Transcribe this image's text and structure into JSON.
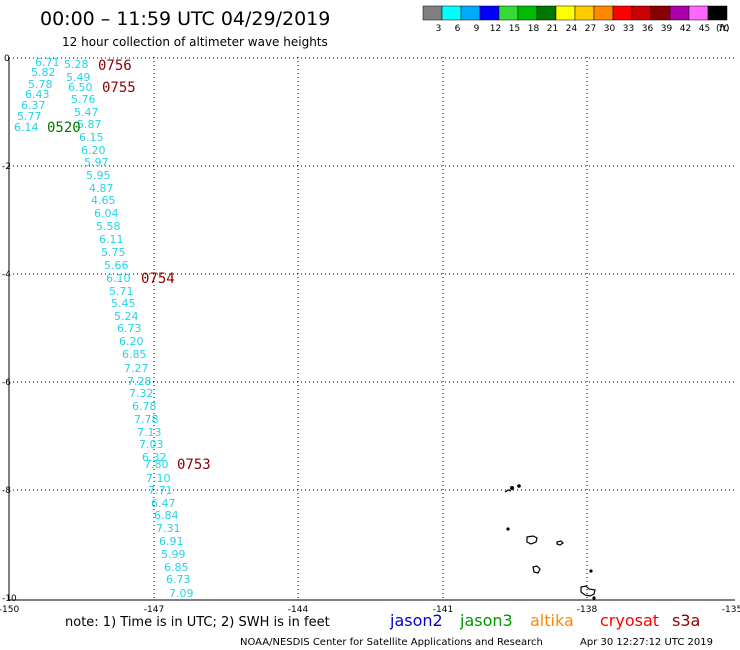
{
  "header": {
    "title": "00:00 – 11:59 UTC 04/29/2019",
    "subtitle": "12 hour collection of altimeter wave heights"
  },
  "color_scale": {
    "unit": "(ft)",
    "bins": [
      {
        "label": "3",
        "color": "#808080"
      },
      {
        "label": "6",
        "color": "#00ffff"
      },
      {
        "label": "9",
        "color": "#00aaff"
      },
      {
        "label": "12",
        "color": "#0000ff"
      },
      {
        "label": "15",
        "color": "#33dd33"
      },
      {
        "label": "18",
        "color": "#00bb00"
      },
      {
        "label": "21",
        "color": "#007700"
      },
      {
        "label": "24",
        "color": "#ffff00"
      },
      {
        "label": "27",
        "color": "#ffcc00"
      },
      {
        "label": "30",
        "color": "#ff8800"
      },
      {
        "label": "33",
        "color": "#ff0000"
      },
      {
        "label": "36",
        "color": "#cc0000"
      },
      {
        "label": "39",
        "color": "#880000"
      },
      {
        "label": "42",
        "color": "#aa00aa"
      },
      {
        "label": "45",
        "color": "#ff66ff"
      },
      {
        "label": "70",
        "color": "#000000"
      }
    ]
  },
  "axes": {
    "lon_ticks": [
      "-150",
      "-147",
      "-144",
      "-141",
      "-138",
      "-135"
    ],
    "lat_ticks": [
      "0",
      "-2",
      "-4",
      "-6",
      "-8",
      "-10"
    ]
  },
  "track_values": [
    "6.71",
    "5.82",
    "5.78",
    "6.43",
    "6.37",
    "5.77",
    "6.14",
    "5.28",
    "5.49",
    "6.50",
    "5.76",
    "5.47",
    "5.87",
    "6.15",
    "6.20",
    "5.97",
    "5.95",
    "4.87",
    "4.65",
    "6.04",
    "5.58",
    "6.11",
    "5.75",
    "5.66",
    "6.10",
    "5.71",
    "5.45",
    "5.24",
    "6.73",
    "6.20",
    "6.85",
    "7.27",
    "7.28",
    "7.32",
    "6.78",
    "7.78",
    "7.13",
    "7.03",
    "6.32",
    "7.80",
    "7.10",
    "7.71",
    "6.47",
    "6.84",
    "7.31",
    "6.91",
    "5.99",
    "6.85",
    "6.73",
    "7.09"
  ],
  "time_labels": [
    {
      "text": "0756",
      "color": "#8b0000"
    },
    {
      "text": "0755",
      "color": "#8b0000"
    },
    {
      "text": "0520",
      "color": "#007700"
    },
    {
      "text": "0754",
      "color": "#8b0000"
    },
    {
      "text": "0753",
      "color": "#8b0000"
    }
  ],
  "note": "note: 1) Time is in UTC; 2) SWH is in feet",
  "satellites": [
    {
      "name": "jason2",
      "color": "#0000cc"
    },
    {
      "name": "jason3",
      "color": "#009900"
    },
    {
      "name": "altika",
      "color": "#ff8800"
    },
    {
      "name": "cryosat",
      "color": "#ff0000"
    },
    {
      "name": "s3a",
      "color": "#8b0000"
    }
  ],
  "credit": "NOAA/NESDIS Center for Satellite Applications and Research",
  "generated": "Apr 30 12:27:12 UTC 2019"
}
